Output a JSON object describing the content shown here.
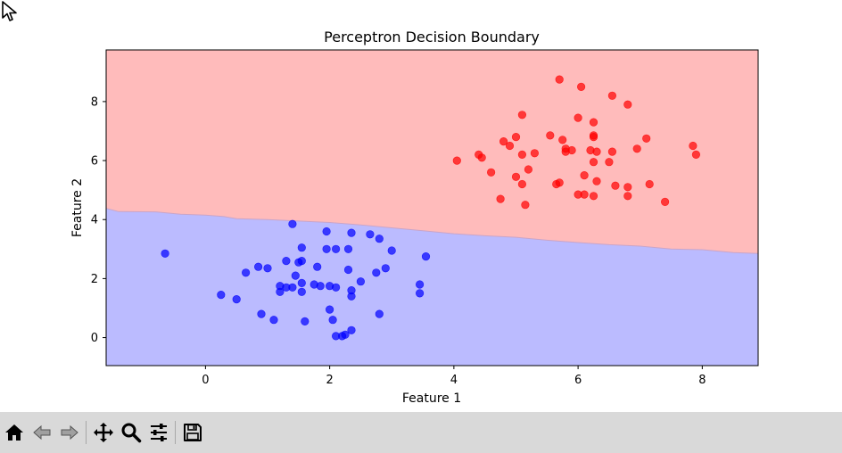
{
  "toolbar": {
    "buttons": [
      {
        "id": "home",
        "icon": "home-icon"
      },
      {
        "id": "back",
        "icon": "back-arrow-icon"
      },
      {
        "id": "forward",
        "icon": "forward-arrow-icon"
      },
      {
        "id": "pan",
        "icon": "pan-move-icon"
      },
      {
        "id": "zoom",
        "icon": "zoom-magnifier-icon"
      },
      {
        "id": "configure",
        "icon": "configure-subplots-icon"
      },
      {
        "id": "save",
        "icon": "save-floppy-icon"
      }
    ]
  },
  "chart_data": {
    "type": "scatter",
    "title": "Perceptron Decision Boundary",
    "xlabel": "Feature 1",
    "ylabel": "Feature 2",
    "xlim": [
      -1.6,
      8.9
    ],
    "ylim": [
      -0.95,
      9.75
    ],
    "xticks": [
      0,
      2,
      4,
      6,
      8
    ],
    "yticks": [
      0,
      2,
      4,
      6,
      8
    ],
    "grid": false,
    "regions": {
      "upper_color": "#ffbbbb",
      "lower_color": "#bbbbff",
      "boundary": [
        [
          -1.6,
          4.38
        ],
        [
          -1.4,
          4.27
        ],
        [
          -0.8,
          4.26
        ],
        [
          -0.4,
          4.18
        ],
        [
          0,
          4.15
        ],
        [
          0.3,
          4.1
        ],
        [
          0.5,
          4.03
        ],
        [
          1,
          4.0
        ],
        [
          1.5,
          3.95
        ],
        [
          2.0,
          3.9
        ],
        [
          2.5,
          3.82
        ],
        [
          3.0,
          3.72
        ],
        [
          3.5,
          3.62
        ],
        [
          4.0,
          3.52
        ],
        [
          4.5,
          3.45
        ],
        [
          5.0,
          3.4
        ],
        [
          5.5,
          3.3
        ],
        [
          6.0,
          3.22
        ],
        [
          6.5,
          3.15
        ],
        [
          7.0,
          3.1
        ],
        [
          7.5,
          3.0
        ],
        [
          8.0,
          2.98
        ],
        [
          8.5,
          2.88
        ],
        [
          8.9,
          2.85
        ]
      ]
    },
    "series": [
      {
        "color": "#ff0000",
        "points": [
          [
            5.7,
            8.75
          ],
          [
            6.05,
            8.5
          ],
          [
            6.55,
            8.2
          ],
          [
            6.8,
            7.9
          ],
          [
            5.1,
            7.55
          ],
          [
            6.0,
            7.45
          ],
          [
            6.25,
            7.3
          ],
          [
            6.25,
            6.85
          ],
          [
            7.1,
            6.75
          ],
          [
            5.55,
            6.85
          ],
          [
            5.75,
            6.7
          ],
          [
            4.8,
            6.65
          ],
          [
            5.0,
            6.8
          ],
          [
            6.25,
            6.8
          ],
          [
            4.9,
            6.5
          ],
          [
            5.8,
            6.4
          ],
          [
            5.9,
            6.35
          ],
          [
            5.8,
            6.3
          ],
          [
            6.2,
            6.35
          ],
          [
            6.3,
            6.3
          ],
          [
            6.95,
            6.4
          ],
          [
            7.85,
            6.5
          ],
          [
            7.9,
            6.2
          ],
          [
            4.4,
            6.2
          ],
          [
            4.45,
            6.1
          ],
          [
            5.3,
            6.25
          ],
          [
            5.1,
            6.2
          ],
          [
            6.55,
            6.3
          ],
          [
            4.05,
            6.0
          ],
          [
            6.25,
            5.95
          ],
          [
            6.5,
            5.95
          ],
          [
            5.2,
            5.7
          ],
          [
            4.6,
            5.6
          ],
          [
            6.1,
            5.5
          ],
          [
            5.0,
            5.45
          ],
          [
            5.1,
            5.2
          ],
          [
            5.65,
            5.2
          ],
          [
            5.7,
            5.25
          ],
          [
            6.3,
            5.3
          ],
          [
            6.6,
            5.15
          ],
          [
            6.8,
            5.1
          ],
          [
            7.15,
            5.2
          ],
          [
            6.0,
            4.85
          ],
          [
            6.1,
            4.85
          ],
          [
            6.25,
            4.8
          ],
          [
            6.8,
            4.8
          ],
          [
            4.75,
            4.7
          ],
          [
            5.15,
            4.5
          ],
          [
            7.4,
            4.6
          ]
        ]
      },
      {
        "color": "#0000ff",
        "points": [
          [
            1.4,
            3.85
          ],
          [
            1.95,
            3.6
          ],
          [
            2.35,
            3.55
          ],
          [
            2.65,
            3.5
          ],
          [
            2.8,
            3.35
          ],
          [
            1.55,
            3.05
          ],
          [
            1.95,
            3.0
          ],
          [
            2.1,
            3.0
          ],
          [
            2.3,
            3.0
          ],
          [
            3.0,
            2.95
          ],
          [
            3.55,
            2.75
          ],
          [
            -0.65,
            2.85
          ],
          [
            1.3,
            2.6
          ],
          [
            1.5,
            2.55
          ],
          [
            1.55,
            2.6
          ],
          [
            1.8,
            2.4
          ],
          [
            0.85,
            2.4
          ],
          [
            1.0,
            2.35
          ],
          [
            2.9,
            2.35
          ],
          [
            2.3,
            2.3
          ],
          [
            0.65,
            2.2
          ],
          [
            2.75,
            2.2
          ],
          [
            1.45,
            2.1
          ],
          [
            2.5,
            1.9
          ],
          [
            1.55,
            1.85
          ],
          [
            1.2,
            1.75
          ],
          [
            1.3,
            1.7
          ],
          [
            1.4,
            1.7
          ],
          [
            1.75,
            1.8
          ],
          [
            1.85,
            1.75
          ],
          [
            2.0,
            1.75
          ],
          [
            2.1,
            1.7
          ],
          [
            1.55,
            1.55
          ],
          [
            1.2,
            1.55
          ],
          [
            2.35,
            1.6
          ],
          [
            3.45,
            1.8
          ],
          [
            3.45,
            1.5
          ],
          [
            0.25,
            1.45
          ],
          [
            0.5,
            1.3
          ],
          [
            2.35,
            1.4
          ],
          [
            0.9,
            0.8
          ],
          [
            1.1,
            0.6
          ],
          [
            1.6,
            0.55
          ],
          [
            2.0,
            0.95
          ],
          [
            2.05,
            0.6
          ],
          [
            2.8,
            0.8
          ],
          [
            2.35,
            0.25
          ],
          [
            2.1,
            0.05
          ],
          [
            2.2,
            0.05
          ],
          [
            2.25,
            0.1
          ]
        ]
      }
    ]
  }
}
